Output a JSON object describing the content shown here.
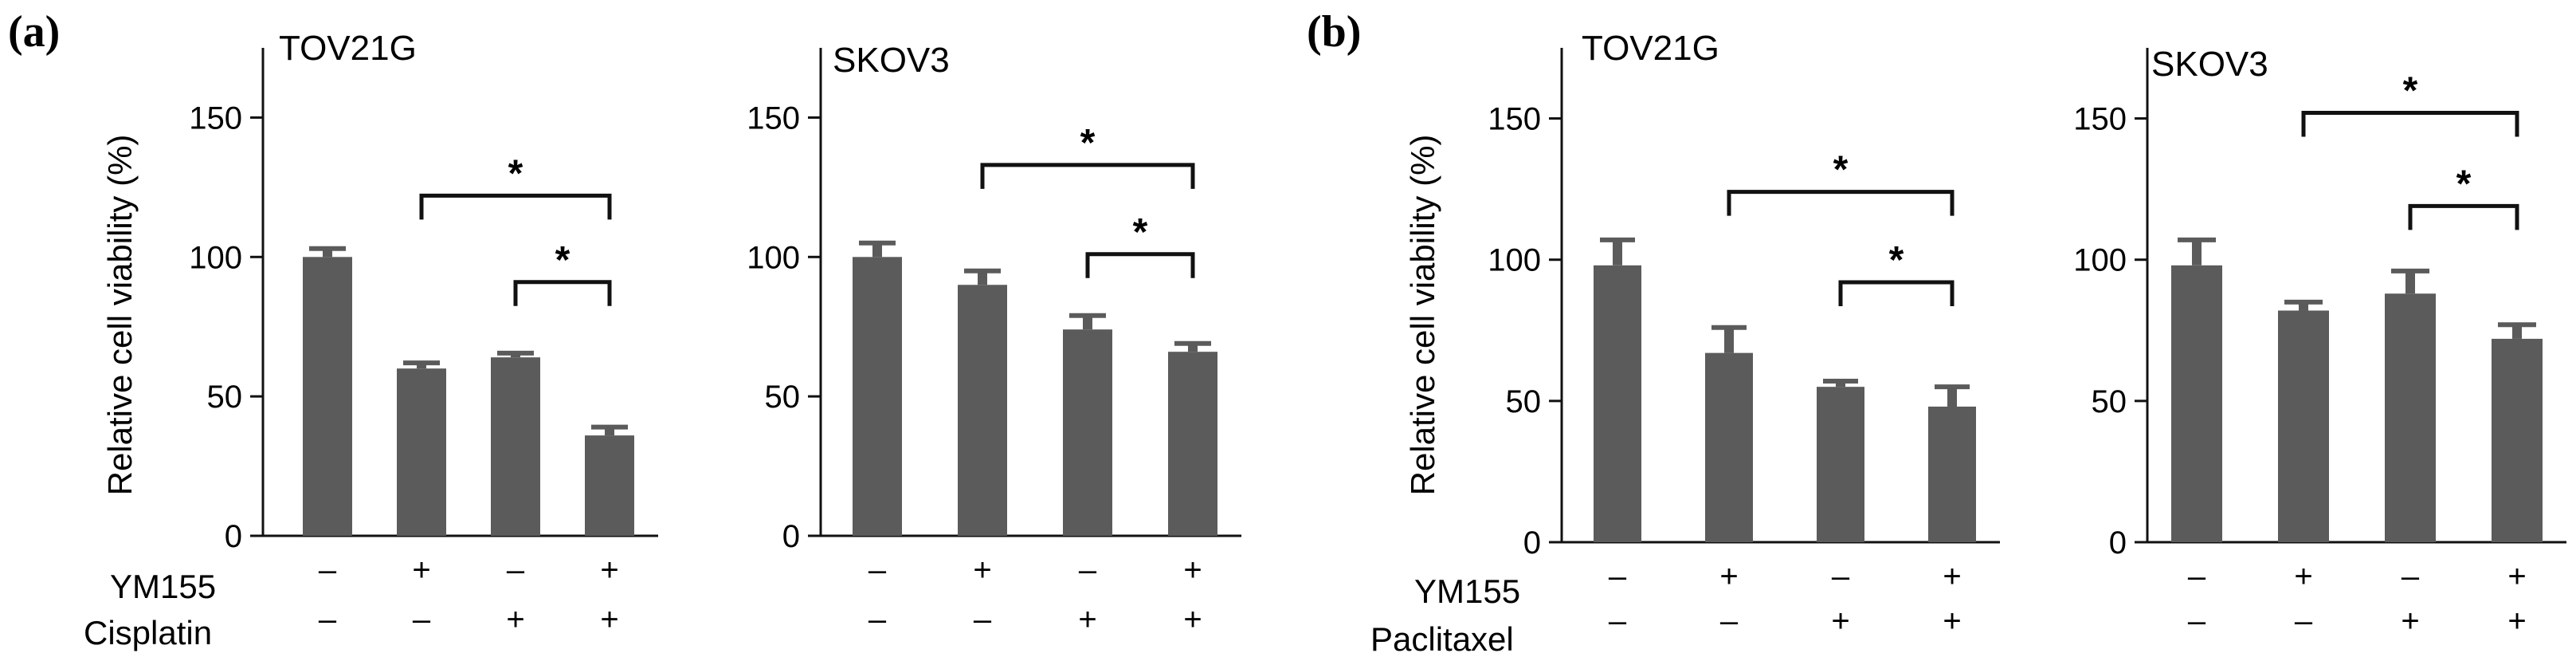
{
  "panels": [
    {
      "letter": "(a)",
      "ylabel": "Relative cell viability (%)",
      "row_labels": [
        "YM155",
        "Cisplatin"
      ]
    },
    {
      "letter": "(b)",
      "ylabel": "Relative cell viability (%)",
      "row_labels": [
        "YM155",
        "Paclitaxel"
      ]
    }
  ],
  "chart_data": [
    {
      "type": "bar",
      "panel": "(a)",
      "title": "TOV21G",
      "ylabel": "Relative cell viability (%)",
      "ylim": [
        0,
        175
      ],
      "yticks": [
        0,
        50,
        100,
        150
      ],
      "categories": [
        "1",
        "2",
        "3",
        "4"
      ],
      "treatments": [
        {
          "name": "YM155",
          "signs": [
            "–",
            "+",
            "–",
            "+"
          ]
        },
        {
          "name": "Cisplatin",
          "signs": [
            "–",
            "–",
            "+",
            "+"
          ]
        }
      ],
      "values": [
        100,
        60,
        64,
        36
      ],
      "errors": [
        3,
        2,
        1.5,
        3
      ],
      "significance": [
        {
          "from": 1,
          "to": 3,
          "label": "*",
          "y": 122
        },
        {
          "from": 2,
          "to": 3,
          "label": "*",
          "y": 91
        }
      ],
      "bar_color": "#5b5b5b"
    },
    {
      "type": "bar",
      "panel": "(a)",
      "title": "SKOV3",
      "ylabel": "",
      "ylim": [
        0,
        175
      ],
      "yticks": [
        0,
        50,
        100,
        150
      ],
      "categories": [
        "1",
        "2",
        "3",
        "4"
      ],
      "treatments": [
        {
          "name": "YM155",
          "signs": [
            "–",
            "+",
            "–",
            "+"
          ]
        },
        {
          "name": "Cisplatin",
          "signs": [
            "–",
            "–",
            "+",
            "+"
          ]
        }
      ],
      "values": [
        100,
        90,
        74,
        66
      ],
      "errors": [
        5,
        5,
        5,
        3
      ],
      "significance": [
        {
          "from": 1,
          "to": 3,
          "label": "*",
          "y": 133
        },
        {
          "from": 2,
          "to": 3,
          "label": "*",
          "y": 101
        }
      ],
      "bar_color": "#5b5b5b"
    },
    {
      "type": "bar",
      "panel": "(b)",
      "title": "TOV21G",
      "ylabel": "Relative cell viability (%)",
      "ylim": [
        0,
        175
      ],
      "yticks": [
        0,
        50,
        100,
        150
      ],
      "categories": [
        "1",
        "2",
        "3",
        "4"
      ],
      "treatments": [
        {
          "name": "YM155",
          "signs": [
            "–",
            "+",
            "–",
            "+"
          ]
        },
        {
          "name": "Paclitaxel",
          "signs": [
            "–",
            "–",
            "+",
            "+"
          ]
        }
      ],
      "values": [
        98,
        67,
        55,
        48
      ],
      "errors": [
        9,
        9,
        2,
        7
      ],
      "significance": [
        {
          "from": 1,
          "to": 3,
          "label": "*",
          "y": 124
        },
        {
          "from": 2,
          "to": 3,
          "label": "*",
          "y": 92
        }
      ],
      "bar_color": "#5b5b5b"
    },
    {
      "type": "bar",
      "panel": "(b)",
      "title": "SKOV3",
      "ylabel": "",
      "ylim": [
        0,
        175
      ],
      "yticks": [
        0,
        50,
        100,
        150
      ],
      "categories": [
        "1",
        "2",
        "3",
        "4"
      ],
      "treatments": [
        {
          "name": "YM155",
          "signs": [
            "–",
            "+",
            "–",
            "+"
          ]
        },
        {
          "name": "Paclitaxel",
          "signs": [
            "–",
            "–",
            "+",
            "+"
          ]
        }
      ],
      "values": [
        98,
        82,
        88,
        72
      ],
      "errors": [
        9,
        3,
        8,
        5
      ],
      "significance": [
        {
          "from": 1,
          "to": 3,
          "label": "*",
          "y": 152
        },
        {
          "from": 2,
          "to": 3,
          "label": "*",
          "y": 119
        }
      ],
      "bar_color": "#5b5b5b"
    }
  ]
}
